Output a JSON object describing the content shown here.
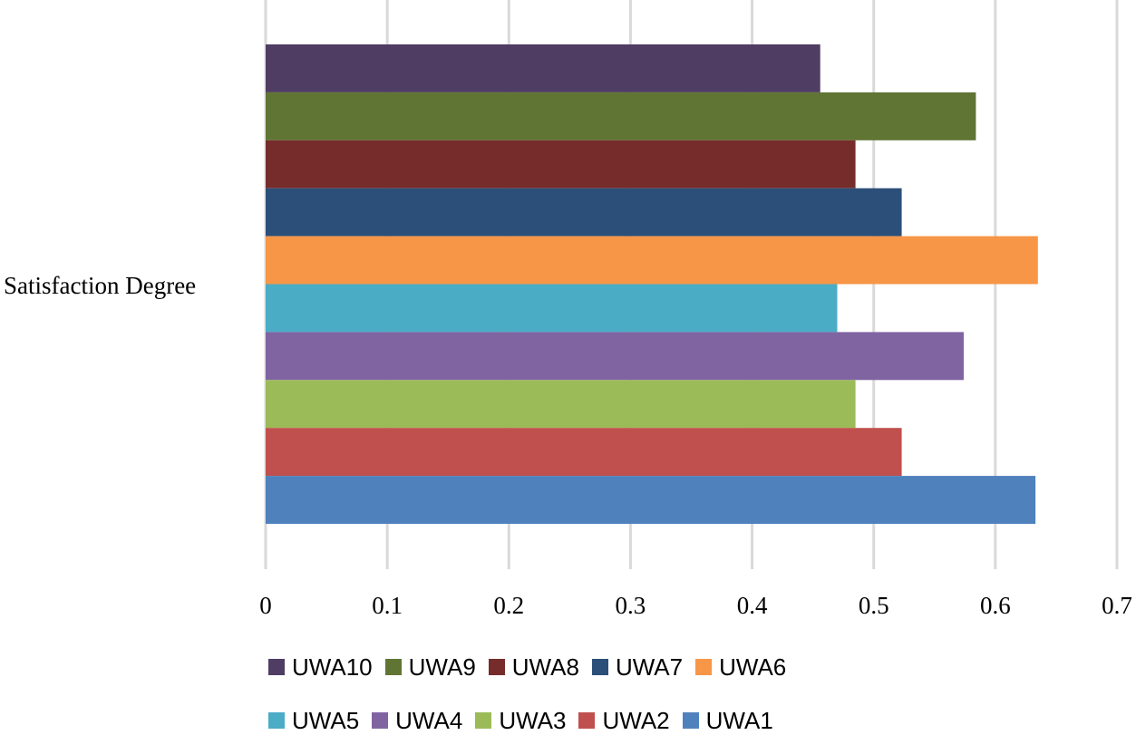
{
  "chart_data": {
    "type": "bar",
    "orientation": "horizontal",
    "categories": [
      "Satisfaction Degree"
    ],
    "series": [
      {
        "name": "UWA10",
        "values": [
          0.456
        ],
        "color": "#4F3D63"
      },
      {
        "name": "UWA9",
        "values": [
          0.584
        ],
        "color": "#607534"
      },
      {
        "name": "UWA8",
        "values": [
          0.485
        ],
        "color": "#772C2C"
      },
      {
        "name": "UWA7",
        "values": [
          0.523
        ],
        "color": "#2B4F78"
      },
      {
        "name": "UWA6",
        "values": [
          0.635
        ],
        "color": "#F79646"
      },
      {
        "name": "UWA5",
        "values": [
          0.47
        ],
        "color": "#4BACC6"
      },
      {
        "name": "UWA4",
        "values": [
          0.574
        ],
        "color": "#8064A2"
      },
      {
        "name": "UWA3",
        "values": [
          0.485
        ],
        "color": "#9BBB59"
      },
      {
        "name": "UWA2",
        "values": [
          0.523
        ],
        "color": "#C0504D"
      },
      {
        "name": "UWA1",
        "values": [
          0.633
        ],
        "color": "#4F81BD"
      }
    ],
    "x_ticks": [
      "0",
      "0.1",
      "0.2",
      "0.3",
      "0.4",
      "0.5",
      "0.6",
      "0.7"
    ],
    "xlim": [
      0,
      0.7
    ],
    "grid": true,
    "legend_position": "bottom",
    "legend_rows": [
      [
        "UWA10",
        "UWA9",
        "UWA8",
        "UWA7",
        "UWA6"
      ],
      [
        "UWA5",
        "UWA4",
        "UWA3",
        "UWA2",
        "UWA1"
      ]
    ]
  }
}
